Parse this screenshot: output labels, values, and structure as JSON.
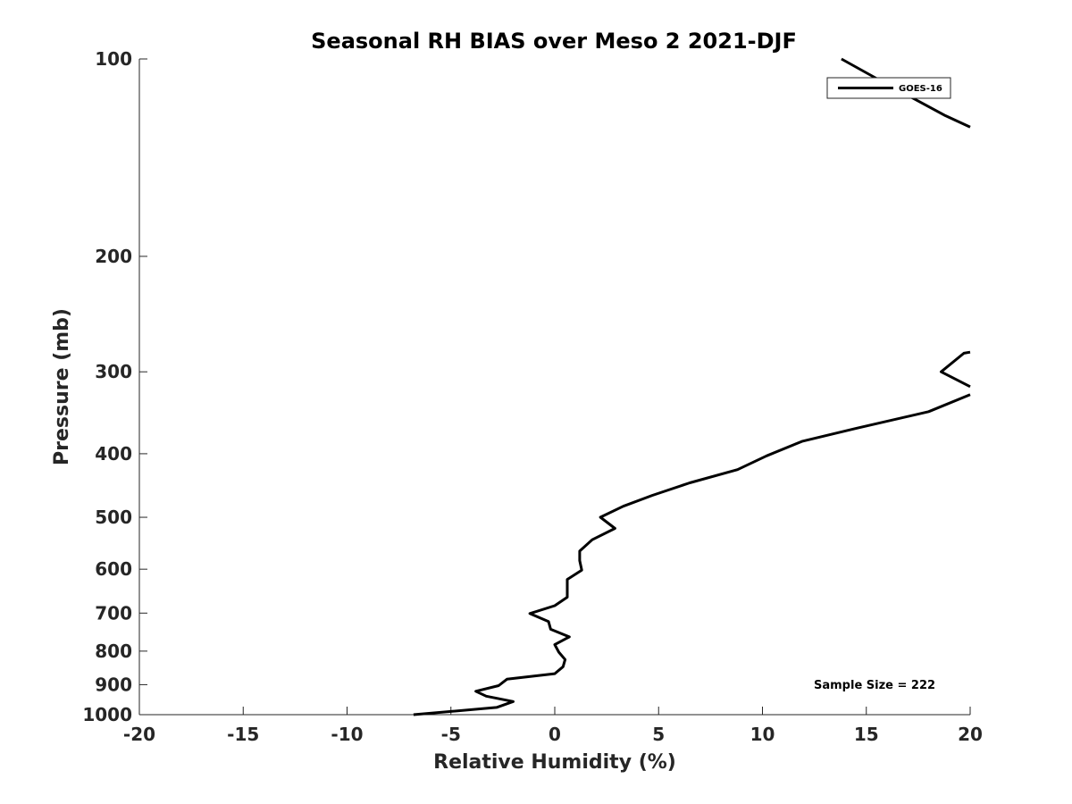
{
  "chart_data": {
    "type": "line",
    "title": "Seasonal RH BIAS over Meso 2  2021-DJF",
    "xlabel": "Relative Humidity (%)",
    "ylabel": "Pressure (mb)",
    "xlim": [
      -20,
      20
    ],
    "ylim": [
      100,
      1000
    ],
    "yscale": "log",
    "yreversed": true,
    "xticks": [
      -20,
      -15,
      -10,
      -5,
      0,
      5,
      10,
      15,
      20
    ],
    "xtick_labels": [
      "-20",
      "-15",
      "-10",
      "-5",
      "0",
      "5",
      "10",
      "15",
      "20"
    ],
    "yticks": [
      100,
      200,
      300,
      400,
      500,
      600,
      700,
      800,
      900,
      1000
    ],
    "ytick_labels": [
      "100",
      "200",
      "300",
      "400",
      "500",
      "600",
      "700",
      "800",
      "900",
      "1000"
    ],
    "legend_position": "top-right",
    "annotation": "Sample Size = 222",
    "series": [
      {
        "name": "GOES-16",
        "color": "#000000",
        "segments": [
          [
            [
              13.8,
              100
            ],
            [
              15.7,
              108
            ],
            [
              17.3,
              115
            ],
            [
              18.8,
              122
            ],
            [
              20,
              127
            ]
          ],
          [
            [
              20,
              280
            ],
            [
              19.7,
              281
            ],
            [
              18.6,
              300
            ],
            [
              20,
              316
            ]
          ],
          [
            [
              20,
              325
            ],
            [
              18,
              345
            ],
            [
              14.5,
              366
            ],
            [
              11.9,
              383
            ],
            [
              10.2,
              403
            ],
            [
              8.8,
              423
            ],
            [
              6.5,
              443
            ],
            [
              4.7,
              463
            ],
            [
              3.3,
              481
            ],
            [
              2.2,
              500
            ],
            [
              2.9,
              520
            ],
            [
              1.8,
              541
            ],
            [
              1.2,
              563
            ],
            [
              1.2,
              582
            ],
            [
              1.3,
              602
            ],
            [
              0.6,
              622
            ],
            [
              0.6,
              641
            ],
            [
              0.6,
              662
            ],
            [
              0,
              682
            ],
            [
              -1.2,
              701
            ],
            [
              -0.3,
              721
            ],
            [
              -0.2,
              741
            ],
            [
              0.7,
              761
            ],
            [
              0,
              782
            ],
            [
              0.2,
              803
            ],
            [
              0.5,
              824
            ],
            [
              0.4,
              845
            ],
            [
              0,
              866
            ],
            [
              -2.3,
              883
            ],
            [
              -2.7,
              903
            ],
            [
              -3.8,
              921
            ],
            [
              -3.3,
              937
            ],
            [
              -2.0,
              955
            ],
            [
              -2.8,
              975
            ],
            [
              -6.8,
              1000
            ]
          ]
        ]
      }
    ]
  }
}
